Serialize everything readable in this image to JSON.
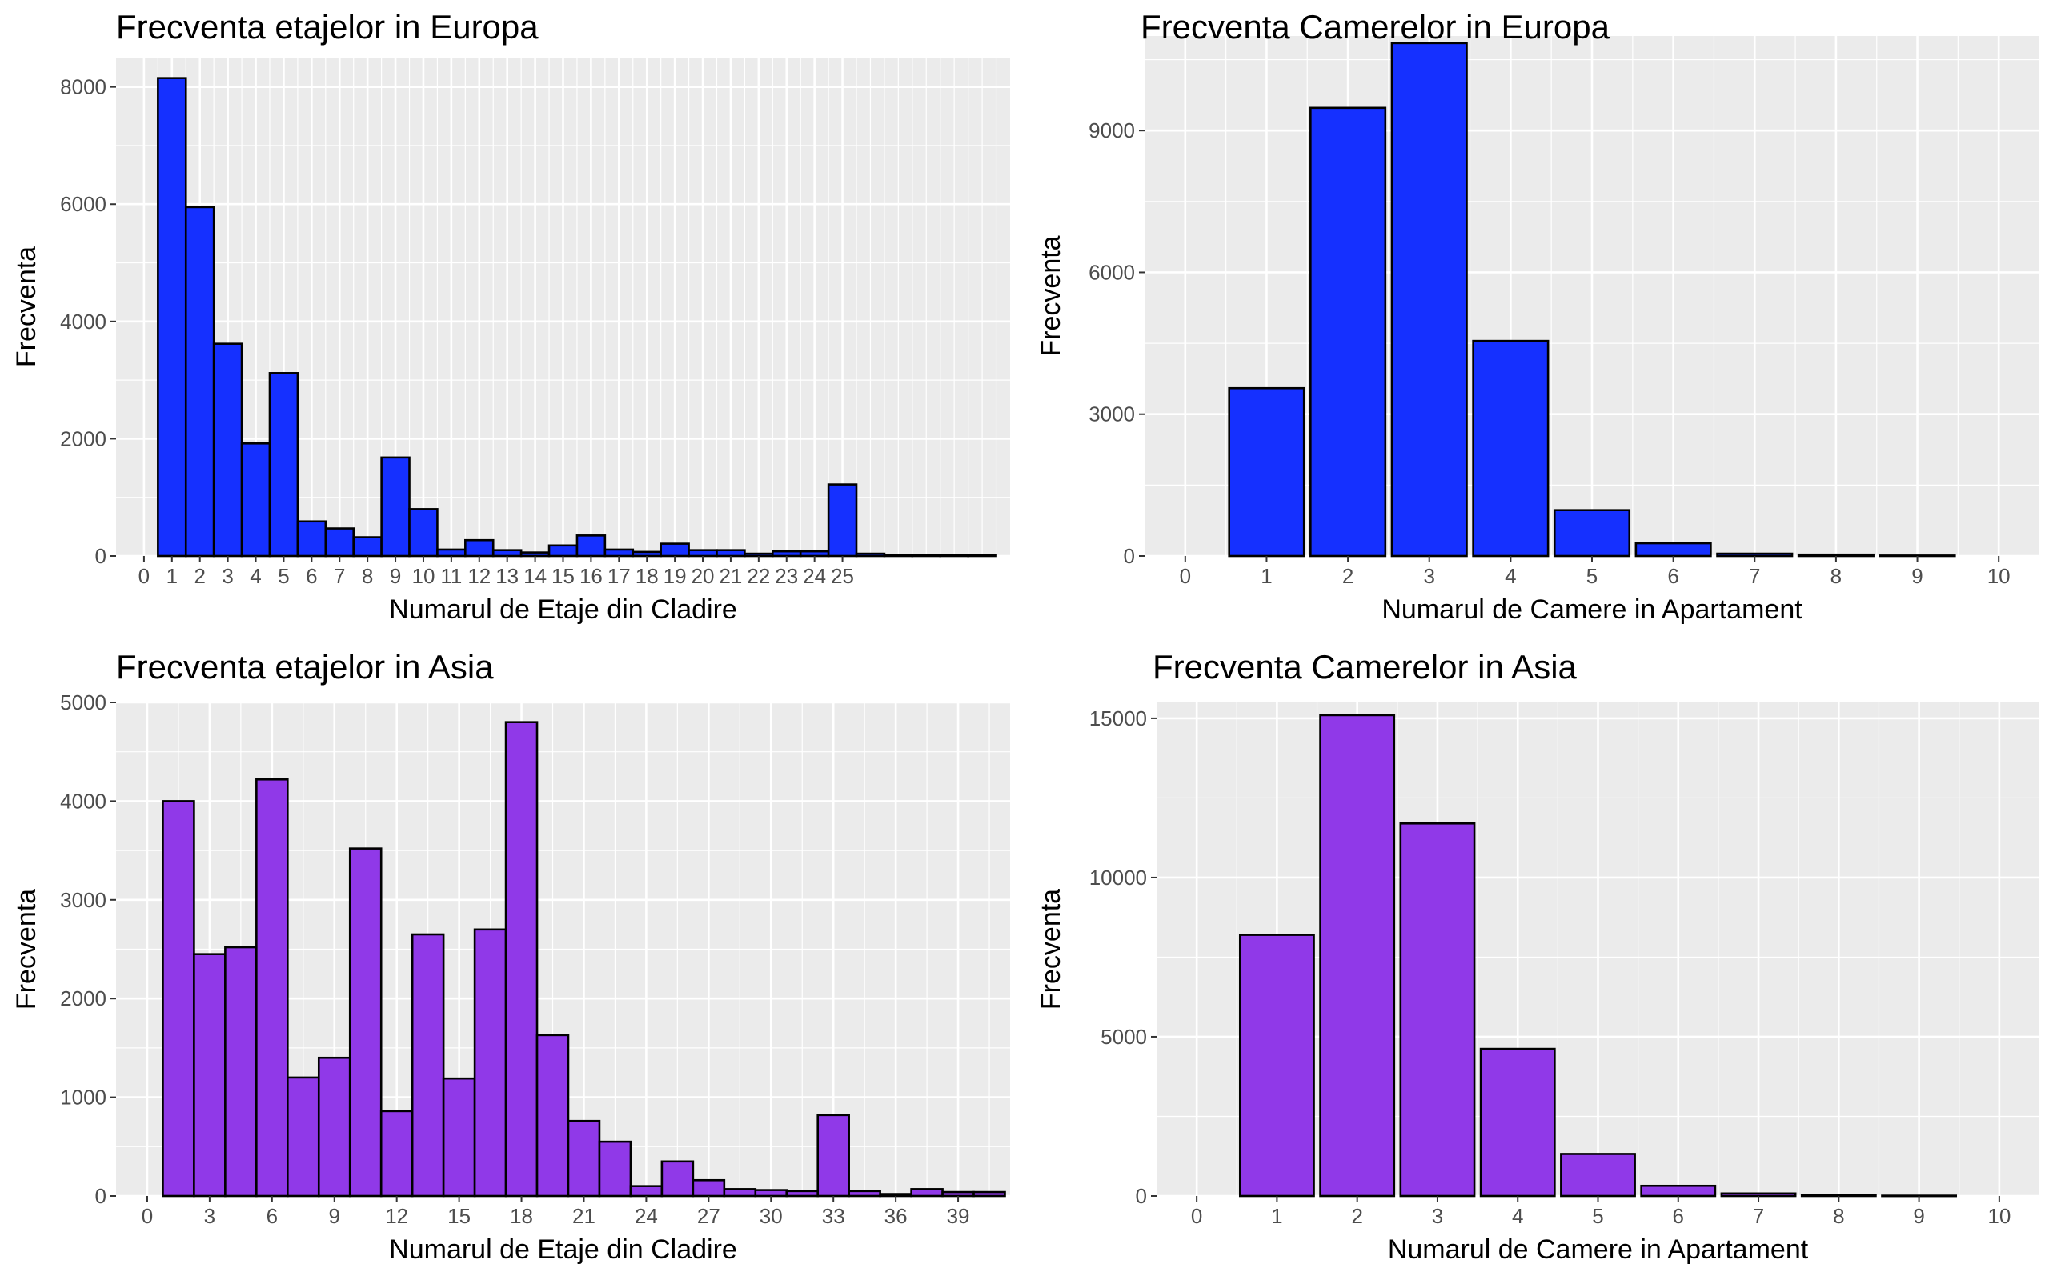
{
  "chart_data": [
    {
      "type": "bar",
      "title": "Frecventa etajelor in Europa",
      "xlabel": "Numarul de Etaje din Cladire",
      "ylabel": "Frecventa",
      "fill": "#1530ff",
      "xlim": [
        -1,
        31
      ],
      "ylim": [
        0,
        8500
      ],
      "x_ticks": [
        0,
        1,
        2,
        3,
        4,
        5,
        6,
        7,
        8,
        9,
        10,
        11,
        12,
        13,
        14,
        15,
        16,
        17,
        18,
        19,
        20,
        21,
        22,
        23,
        24,
        25
      ],
      "x_tick_labels": [
        "0",
        "1",
        "2",
        "3",
        "4",
        "5",
        "6",
        "7",
        "8",
        "9",
        "10",
        "11",
        "12",
        "13",
        "14",
        "15",
        "16",
        "17",
        "18",
        "19",
        "20",
        "21",
        "22",
        "23",
        "24",
        "25"
      ],
      "y_ticks": [
        0,
        2000,
        4000,
        6000,
        8000
      ],
      "y_tick_labels": [
        "0",
        "2000",
        "4000",
        "6000",
        "8000"
      ],
      "x_minor_grid_step": 0.5,
      "bins": [
        {
          "x": 1,
          "value": 8150
        },
        {
          "x": 2,
          "value": 5950
        },
        {
          "x": 3,
          "value": 3620
        },
        {
          "x": 4,
          "value": 1920
        },
        {
          "x": 5,
          "value": 3120
        },
        {
          "x": 6,
          "value": 590
        },
        {
          "x": 7,
          "value": 470
        },
        {
          "x": 8,
          "value": 320
        },
        {
          "x": 9,
          "value": 1680
        },
        {
          "x": 10,
          "value": 800
        },
        {
          "x": 11,
          "value": 110
        },
        {
          "x": 12,
          "value": 270
        },
        {
          "x": 13,
          "value": 100
        },
        {
          "x": 14,
          "value": 60
        },
        {
          "x": 15,
          "value": 180
        },
        {
          "x": 16,
          "value": 350
        },
        {
          "x": 17,
          "value": 110
        },
        {
          "x": 18,
          "value": 70
        },
        {
          "x": 19,
          "value": 210
        },
        {
          "x": 20,
          "value": 100
        },
        {
          "x": 21,
          "value": 100
        },
        {
          "x": 22,
          "value": 40
        },
        {
          "x": 23,
          "value": 80
        },
        {
          "x": 24,
          "value": 80
        },
        {
          "x": 25,
          "value": 1220
        },
        {
          "x": 26,
          "value": 40
        },
        {
          "x": 27,
          "value": 10
        },
        {
          "x": 28,
          "value": 10
        },
        {
          "x": 29,
          "value": 10
        },
        {
          "x": 30,
          "value": 10
        }
      ]
    },
    {
      "type": "bar",
      "title": "Frecventa Camerelor in Europa",
      "xlabel": "Numarul de Camere in Apartament",
      "ylabel": "Frecventa",
      "fill": "#1530ff",
      "xlim": [
        -0.5,
        10.5
      ],
      "ylim": [
        0,
        11000
      ],
      "x_ticks": [
        0,
        1,
        2,
        3,
        4,
        5,
        6,
        7,
        8,
        9,
        10
      ],
      "x_tick_labels": [
        "0",
        "1",
        "2",
        "3",
        "4",
        "5",
        "6",
        "7",
        "8",
        "9",
        "10"
      ],
      "y_ticks": [
        0,
        3000,
        6000,
        9000
      ],
      "y_tick_labels": [
        "0",
        "3000",
        "6000",
        "9000"
      ],
      "bins": [
        {
          "x": 1,
          "value": 3550
        },
        {
          "x": 2,
          "value": 9480
        },
        {
          "x": 3,
          "value": 10850
        },
        {
          "x": 4,
          "value": 4550
        },
        {
          "x": 5,
          "value": 970
        },
        {
          "x": 6,
          "value": 270
        },
        {
          "x": 7,
          "value": 50
        },
        {
          "x": 8,
          "value": 30
        },
        {
          "x": 9,
          "value": 10
        }
      ]
    },
    {
      "type": "bar",
      "title": "Frecventa etajelor in Asia",
      "xlabel": "Numarul de Etaje din Cladire",
      "ylabel": "Frecventa",
      "fill": "#9039e8",
      "xlim": [
        -1.5,
        41.5
      ],
      "ylim": [
        0,
        5000
      ],
      "x_ticks": [
        0,
        3,
        6,
        9,
        12,
        15,
        18,
        21,
        24,
        27,
        30,
        33,
        36,
        39
      ],
      "x_tick_labels": [
        "0",
        "3",
        "6",
        "9",
        "12",
        "15",
        "18",
        "21",
        "24",
        "27",
        "30",
        "33",
        "36",
        "39"
      ],
      "y_ticks": [
        0,
        1000,
        2000,
        3000,
        4000,
        5000
      ],
      "y_tick_labels": [
        "0",
        "1000",
        "2000",
        "3000",
        "4000",
        "5000"
      ],
      "x_minor_grid_step": 1.5,
      "bins": [
        {
          "x": 1.5,
          "value": 4000
        },
        {
          "x": 3,
          "value": 2450
        },
        {
          "x": 4.5,
          "value": 2520
        },
        {
          "x": 6,
          "value": 4220
        },
        {
          "x": 7.5,
          "value": 1200
        },
        {
          "x": 9,
          "value": 1400
        },
        {
          "x": 10.5,
          "value": 3520
        },
        {
          "x": 12,
          "value": 860
        },
        {
          "x": 13.5,
          "value": 2650
        },
        {
          "x": 15,
          "value": 1190
        },
        {
          "x": 16.5,
          "value": 2700
        },
        {
          "x": 18,
          "value": 4800
        },
        {
          "x": 19.5,
          "value": 1630
        },
        {
          "x": 21,
          "value": 760
        },
        {
          "x": 22.5,
          "value": 550
        },
        {
          "x": 24,
          "value": 100
        },
        {
          "x": 25.5,
          "value": 350
        },
        {
          "x": 27,
          "value": 160
        },
        {
          "x": 28.5,
          "value": 70
        },
        {
          "x": 30,
          "value": 60
        },
        {
          "x": 31.5,
          "value": 50
        },
        {
          "x": 33,
          "value": 820
        },
        {
          "x": 34.5,
          "value": 50
        },
        {
          "x": 36,
          "value": 20
        },
        {
          "x": 37.5,
          "value": 70
        },
        {
          "x": 39,
          "value": 40
        },
        {
          "x": 40.5,
          "value": 40
        }
      ]
    },
    {
      "type": "bar",
      "title": "Frecventa Camerelor in Asia",
      "xlabel": "Numarul de Camere in Apartament",
      "ylabel": "Frecventa",
      "fill": "#9039e8",
      "xlim": [
        -0.5,
        10.5
      ],
      "ylim": [
        0,
        15500
      ],
      "x_ticks": [
        0,
        1,
        2,
        3,
        4,
        5,
        6,
        7,
        8,
        9,
        10
      ],
      "x_tick_labels": [
        "0",
        "1",
        "2",
        "3",
        "4",
        "5",
        "6",
        "7",
        "8",
        "9",
        "10"
      ],
      "y_ticks": [
        0,
        5000,
        10000,
        15000
      ],
      "y_tick_labels": [
        "0",
        "5000",
        "10000",
        "15000"
      ],
      "bins": [
        {
          "x": 1,
          "value": 8200
        },
        {
          "x": 2,
          "value": 15100
        },
        {
          "x": 3,
          "value": 11700
        },
        {
          "x": 4,
          "value": 4620
        },
        {
          "x": 5,
          "value": 1320
        },
        {
          "x": 6,
          "value": 320
        },
        {
          "x": 7,
          "value": 80
        },
        {
          "x": 8,
          "value": 30
        },
        {
          "x": 9,
          "value": 10
        }
      ]
    }
  ]
}
